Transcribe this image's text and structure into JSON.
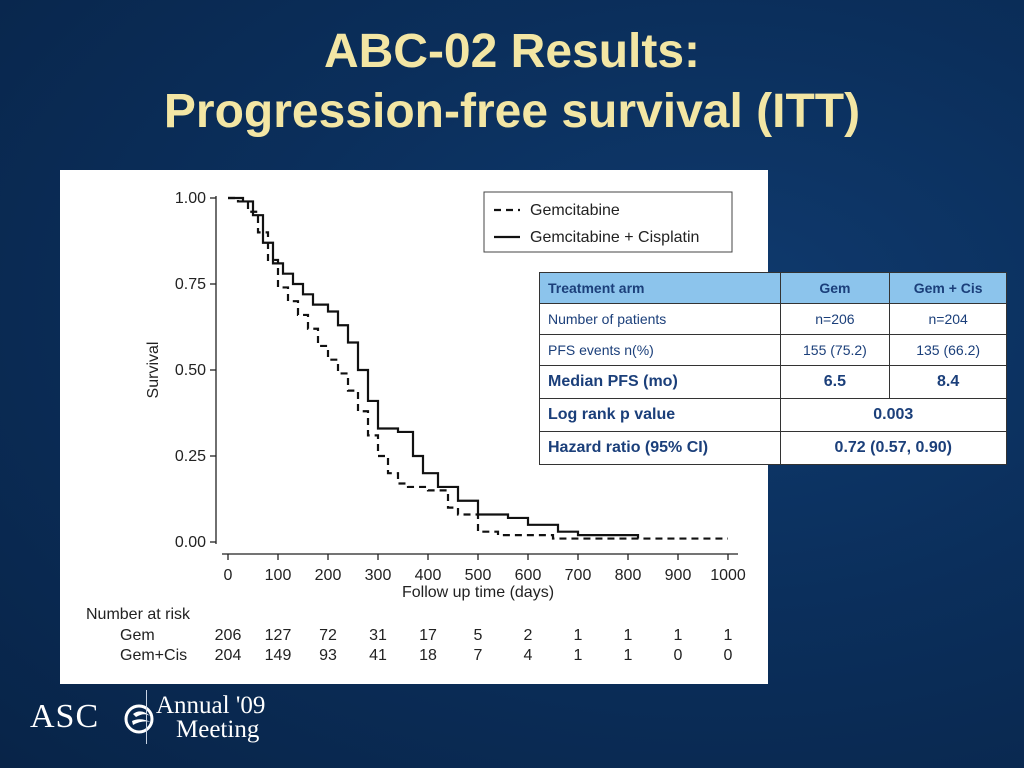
{
  "slide": {
    "title_line1": "ABC-02 Results:",
    "title_line2": "Progression-free survival (ITT)"
  },
  "table": {
    "headers": [
      "Treatment arm",
      "Gem",
      "Gem + Cis"
    ],
    "rows": [
      {
        "label": "Number of patients",
        "gem": "n=206",
        "gemcis": "n=204"
      },
      {
        "label": "PFS events n(%)",
        "gem": "155 (75.2)",
        "gemcis": "135 (66.2)"
      },
      {
        "label": "Median PFS (mo)",
        "gem": "6.5",
        "gemcis": "8.4"
      }
    ],
    "logrank_label": "Log rank p value",
    "logrank_value": "0.003",
    "hr_label": "Hazard ratio (95% CI)",
    "hr_value": "0.72 (0.57, 0.90)"
  },
  "logo": {
    "asco": "ASC",
    "meeting_line1": "Annual '09",
    "meeting_line2": "Meeting"
  },
  "chart_data": {
    "type": "line",
    "xlabel": "Follow up time (days)",
    "ylabel": "Survival",
    "xlim": [
      0,
      1000
    ],
    "ylim": [
      0,
      1
    ],
    "xticks": [
      "0",
      "100",
      "200",
      "300",
      "400",
      "500",
      "600",
      "700",
      "800",
      "900",
      "1000"
    ],
    "yticks": [
      "0.00",
      "0.25",
      "0.50",
      "0.75",
      "1.00"
    ],
    "legend_position": "top-right",
    "series": [
      {
        "name": "Gemcitabine",
        "style": "dashed",
        "points": [
          [
            0,
            1.0
          ],
          [
            20,
            0.99
          ],
          [
            40,
            0.96
          ],
          [
            60,
            0.9
          ],
          [
            80,
            0.82
          ],
          [
            100,
            0.74
          ],
          [
            120,
            0.7
          ],
          [
            140,
            0.66
          ],
          [
            160,
            0.62
          ],
          [
            180,
            0.57
          ],
          [
            200,
            0.53
          ],
          [
            220,
            0.49
          ],
          [
            240,
            0.44
          ],
          [
            260,
            0.38
          ],
          [
            280,
            0.31
          ],
          [
            300,
            0.25
          ],
          [
            320,
            0.2
          ],
          [
            340,
            0.17
          ],
          [
            360,
            0.16
          ],
          [
            400,
            0.15
          ],
          [
            440,
            0.1
          ],
          [
            460,
            0.08
          ],
          [
            500,
            0.03
          ],
          [
            540,
            0.02
          ],
          [
            600,
            0.02
          ],
          [
            650,
            0.01
          ],
          [
            1000,
            0.01
          ]
        ]
      },
      {
        "name": "Gemcitabine + Cisplatin",
        "style": "solid",
        "points": [
          [
            0,
            1.0
          ],
          [
            30,
            0.99
          ],
          [
            50,
            0.95
          ],
          [
            70,
            0.87
          ],
          [
            90,
            0.81
          ],
          [
            110,
            0.78
          ],
          [
            130,
            0.75
          ],
          [
            150,
            0.72
          ],
          [
            170,
            0.69
          ],
          [
            200,
            0.67
          ],
          [
            220,
            0.63
          ],
          [
            240,
            0.58
          ],
          [
            260,
            0.5
          ],
          [
            280,
            0.41
          ],
          [
            300,
            0.33
          ],
          [
            340,
            0.32
          ],
          [
            370,
            0.25
          ],
          [
            390,
            0.2
          ],
          [
            420,
            0.16
          ],
          [
            460,
            0.12
          ],
          [
            500,
            0.08
          ],
          [
            560,
            0.07
          ],
          [
            600,
            0.05
          ],
          [
            660,
            0.03
          ],
          [
            700,
            0.02
          ],
          [
            820,
            0.01
          ]
        ]
      }
    ],
    "risk_table": {
      "title": "Number at risk",
      "times": [
        "0",
        "100",
        "200",
        "300",
        "400",
        "500",
        "600",
        "700",
        "800",
        "900",
        "1000"
      ],
      "rows": [
        {
          "label": "Gem",
          "values": [
            "206",
            "127",
            "72",
            "31",
            "17",
            "5",
            "2",
            "1",
            "1",
            "1",
            "1"
          ]
        },
        {
          "label": "Gem+Cis",
          "values": [
            "204",
            "149",
            "93",
            "41",
            "18",
            "7",
            "4",
            "1",
            "1",
            "0",
            "0"
          ]
        }
      ]
    }
  }
}
